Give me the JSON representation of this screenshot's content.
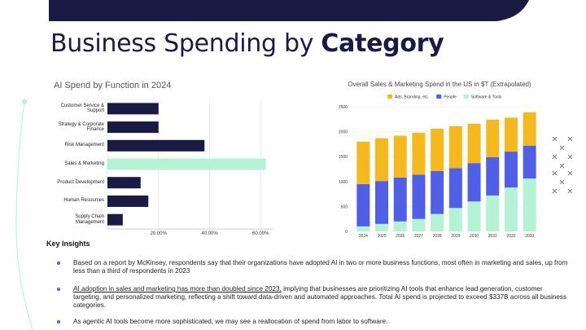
{
  "heading": {
    "text": "Business Spending by ",
    "bold": "Category"
  },
  "chart_data": [
    {
      "type": "barh",
      "title": "AI Spend by Function in 2024",
      "categories": [
        "Customer Service & Support",
        "Strategy & Corporate Finance",
        "Risk Management",
        "Sales & Marketing",
        "Product Development",
        "Human Resources",
        "Supply Chain Management"
      ],
      "values": [
        20,
        20,
        38,
        62,
        13,
        16,
        6
      ],
      "colors": [
        "#1b1a45",
        "#1b1a45",
        "#1b1a45",
        "#b3f3d3",
        "#1b1a45",
        "#1b1a45",
        "#1b1a45"
      ],
      "xlim": [
        0,
        65
      ],
      "xticks": [
        {
          "value": 20,
          "label": "20.00%"
        },
        {
          "value": 40,
          "label": "40.00%"
        },
        {
          "value": 60,
          "label": "60.00%"
        }
      ],
      "grid": true
    },
    {
      "type": "stacked",
      "title": "Overall Sales & Marketing Spend in the US in $T (Extrapolated)",
      "categories": [
        "2024",
        "2025",
        "2026",
        "2027",
        "2028",
        "2029",
        "2030",
        "2031",
        "2032",
        "2033"
      ],
      "series": [
        {
          "name": "Software & Tools",
          "color": "#b4f2d4",
          "values": [
            100,
            150,
            200,
            250,
            350,
            470,
            600,
            720,
            880,
            1060
          ]
        },
        {
          "name": "People",
          "color": "#4f5fe8",
          "values": [
            850,
            860,
            880,
            890,
            860,
            800,
            770,
            770,
            720,
            660
          ]
        },
        {
          "name": "Ads, Branding, etc.",
          "color": "#f6b91d",
          "values": [
            850,
            860,
            840,
            840,
            850,
            840,
            790,
            750,
            680,
            670
          ]
        }
      ],
      "legend_order": [
        2,
        1,
        0
      ],
      "ylim": [
        0,
        2500
      ],
      "yticks": [
        0,
        500,
        1000,
        1500,
        2000,
        2500
      ],
      "grid": true
    }
  ],
  "insights": {
    "title": "Key Insights",
    "bullets": [
      {
        "text": "Based on a report by McKinsey, respondents say that their organizations have adopted AI in two or more business functions, most often in marketing and sales, up from less than a third of respondents in 2023"
      },
      {
        "underlined": "AI adoption in sales and marketing has more than doubled since 2023,",
        "text": " implying that businesses are prioritizing AI tools that enhance lead generation, customer targeting, and personalized marketing, reflecting a shift toward data-driven and automated approaches. Total AI spend is projected to exceed $337B across all business categories."
      },
      {
        "text": "As agentic AI tools become more sophisticated, we may see a reallocation of spend from labor to software."
      }
    ]
  }
}
